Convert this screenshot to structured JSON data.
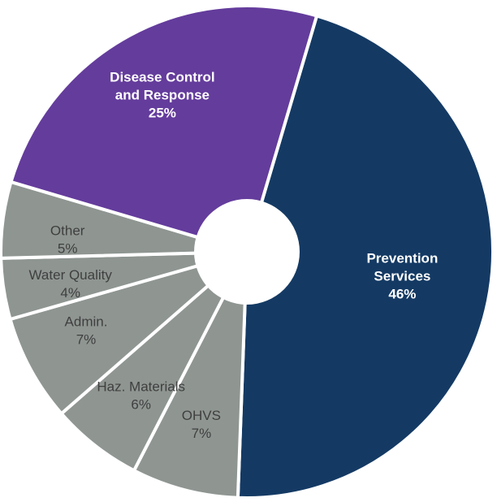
{
  "chart_data": {
    "type": "pie",
    "title": "",
    "legend": "none",
    "slices": [
      {
        "label_lines": [
          "Prevention",
          "Services"
        ],
        "percent_label": "46%",
        "value": 46,
        "color": "#143a64",
        "text_color": "#ffffff",
        "bold": true
      },
      {
        "label_lines": [
          "OHVS"
        ],
        "percent_label": "7%",
        "value": 7,
        "color": "#8f9692",
        "text_color": "#3f3f3f",
        "bold": false
      },
      {
        "label_lines": [
          "Haz. Materials"
        ],
        "percent_label": "6%",
        "value": 6,
        "color": "#8f9692",
        "text_color": "#3f3f3f",
        "bold": false
      },
      {
        "label_lines": [
          "Admin."
        ],
        "percent_label": "7%",
        "value": 7,
        "color": "#8f9692",
        "text_color": "#3f3f3f",
        "bold": false
      },
      {
        "label_lines": [
          "Water Quality"
        ],
        "percent_label": "4%",
        "value": 4,
        "color": "#8f9692",
        "text_color": "#3f3f3f",
        "bold": false
      },
      {
        "label_lines": [
          "Other"
        ],
        "percent_label": "5%",
        "value": 5,
        "color": "#8f9692",
        "text_color": "#3f3f3f",
        "bold": false
      },
      {
        "label_lines": [
          "Disease Control",
          "and Response"
        ],
        "percent_label": "25%",
        "value": 25,
        "color": "#643c9c",
        "text_color": "#ffffff",
        "bold": true
      }
    ]
  }
}
